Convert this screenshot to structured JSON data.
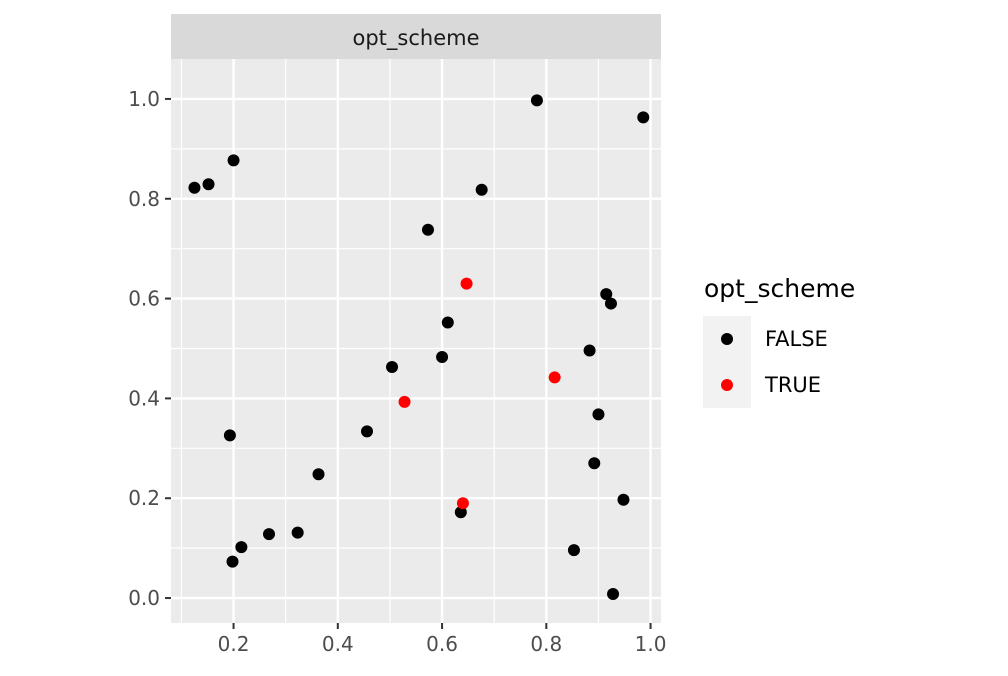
{
  "chart_data": {
    "type": "scatter",
    "facet_title": "opt_scheme",
    "xlabel": "",
    "ylabel": "",
    "xlim": [
      0.08,
      1.02
    ],
    "ylim": [
      -0.05,
      1.08
    ],
    "x_ticks": [
      0.2,
      0.4,
      0.6,
      0.8,
      1.0
    ],
    "x_tick_labels": [
      "0.2",
      "0.4",
      "0.6",
      "0.8",
      "1.0"
    ],
    "y_ticks": [
      0.0,
      0.2,
      0.4,
      0.6,
      0.8,
      1.0
    ],
    "y_tick_labels": [
      "0.0",
      "0.2",
      "0.4",
      "0.6",
      "0.8",
      "1.0"
    ],
    "grid": true,
    "legend": {
      "title": "opt_scheme",
      "placement": "right",
      "entries": [
        {
          "label": "FALSE",
          "color": "#000000"
        },
        {
          "label": "TRUE",
          "color": "#ff0000"
        }
      ]
    },
    "series": [
      {
        "name": "FALSE",
        "color": "#000000",
        "points": [
          [
            0.125,
            0.822
          ],
          [
            0.152,
            0.829
          ],
          [
            0.2,
            0.877
          ],
          [
            0.193,
            0.326
          ],
          [
            0.198,
            0.073
          ],
          [
            0.215,
            0.102
          ],
          [
            0.268,
            0.128
          ],
          [
            0.323,
            0.131
          ],
          [
            0.363,
            0.248
          ],
          [
            0.456,
            0.334
          ],
          [
            0.504,
            0.463
          ],
          [
            0.573,
            0.738
          ],
          [
            0.6,
            0.483
          ],
          [
            0.611,
            0.552
          ],
          [
            0.636,
            0.172
          ],
          [
            0.676,
            0.818
          ],
          [
            0.782,
            0.997
          ],
          [
            0.853,
            0.096
          ],
          [
            0.883,
            0.496
          ],
          [
            0.892,
            0.27
          ],
          [
            0.9,
            0.368
          ],
          [
            0.915,
            0.609
          ],
          [
            0.924,
            0.59
          ],
          [
            0.928,
            0.008
          ],
          [
            0.948,
            0.197
          ],
          [
            0.986,
            0.963
          ]
        ]
      },
      {
        "name": "TRUE",
        "color": "#ff0000",
        "points": [
          [
            0.528,
            0.393
          ],
          [
            0.64,
            0.19
          ],
          [
            0.647,
            0.63
          ],
          [
            0.816,
            0.442
          ]
        ]
      }
    ]
  }
}
